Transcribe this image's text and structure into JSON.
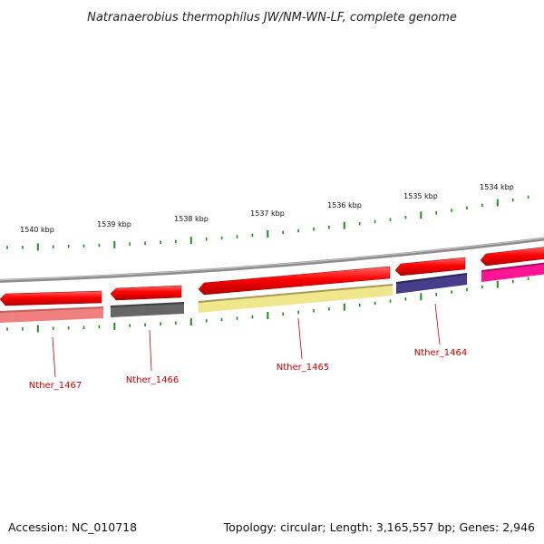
{
  "title": "Natranaerobius thermophilus JW/NM-WN-LF, complete genome",
  "footer": {
    "accession": "Accession: NC_010718",
    "topology": "Topology: circular; Length: 3,165,557 bp; Genes: 2,946"
  },
  "scale": {
    "kbp_labels": [
      "1540 kbp",
      "1539 kbp",
      "1538 kbp",
      "1537 kbp",
      "1536 kbp",
      "1535 kbp",
      "1534 kbp"
    ]
  },
  "genes": [
    {
      "label": "Nther_1467",
      "lower_color": "#f08080"
    },
    {
      "label": "Nther_1466",
      "lower_color": "#666666"
    },
    {
      "label": "Nther_1465",
      "lower_color": "#f0e68c"
    },
    {
      "label": "Nther_1464",
      "lower_color": "#483d8b"
    },
    {
      "label": "",
      "lower_color": "#ff1493"
    }
  ],
  "colors": {
    "cds_forward": "#ff0000",
    "backbone": "#8c8c8c",
    "ticks": "#228b22",
    "label_line": "#cc0000"
  }
}
